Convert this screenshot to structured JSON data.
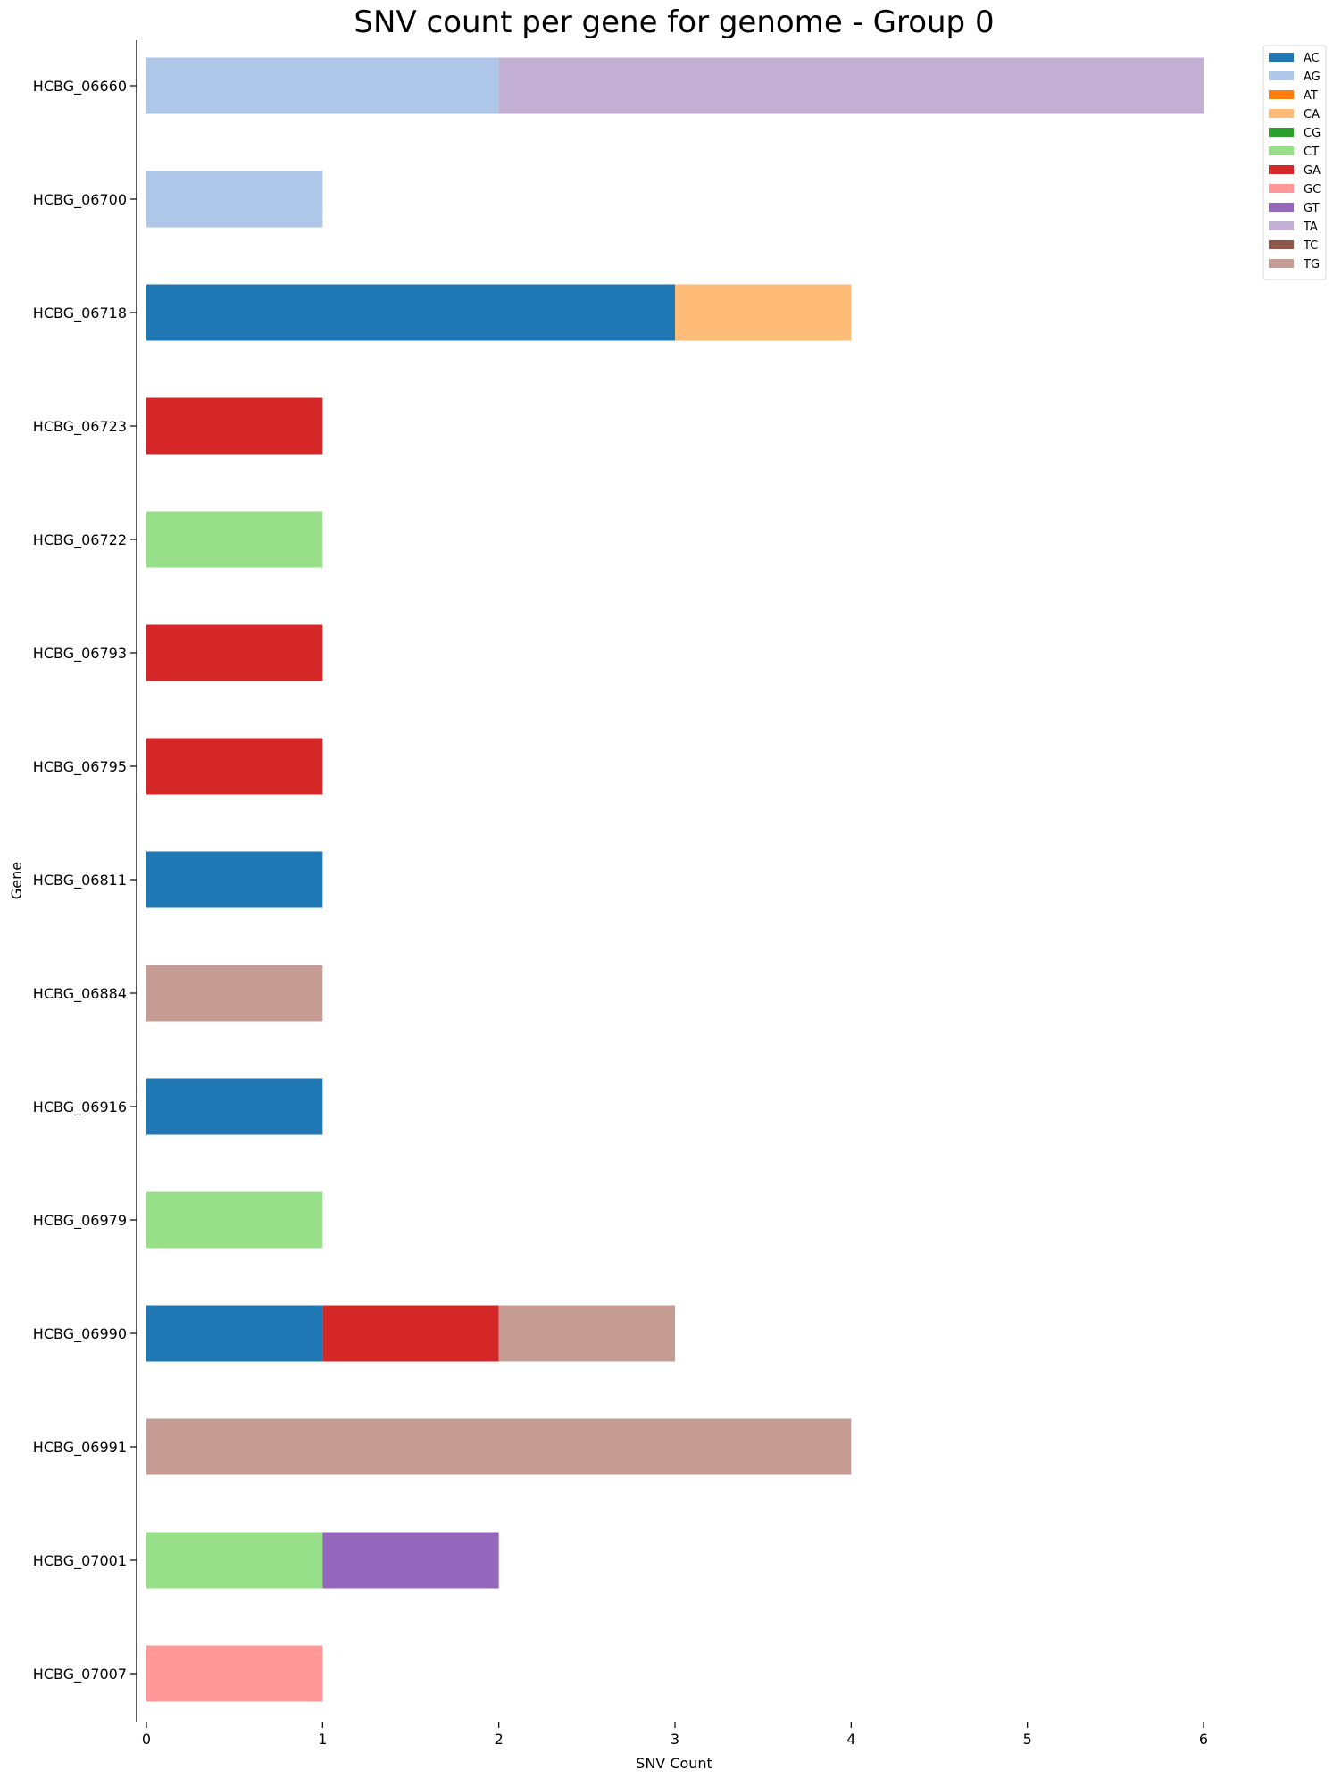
{
  "chart_data": {
    "type": "bar",
    "orientation": "horizontal",
    "stacked": true,
    "title": "SNV count per gene for genome - Group 0",
    "xlabel": "SNV Count",
    "ylabel": "Gene",
    "xlim": [
      0,
      6
    ],
    "xticks": [
      0,
      1,
      2,
      3,
      4,
      5,
      6
    ],
    "grid": false,
    "legend_position": "top-right",
    "categories": [
      "HCBG_06660",
      "HCBG_06700",
      "HCBG_06718",
      "HCBG_06723",
      "HCBG_06722",
      "HCBG_06793",
      "HCBG_06795",
      "HCBG_06811",
      "HCBG_06884",
      "HCBG_06916",
      "HCBG_06979",
      "HCBG_06990",
      "HCBG_06991",
      "HCBG_07001",
      "HCBG_07007"
    ],
    "series": [
      {
        "name": "AC",
        "color": "#1f77b4",
        "values": [
          0,
          0,
          3,
          0,
          0,
          0,
          0,
          1,
          0,
          1,
          0,
          1,
          0,
          0,
          0
        ]
      },
      {
        "name": "AG",
        "color": "#aec7e8",
        "values": [
          2,
          1,
          0,
          0,
          0,
          0,
          0,
          0,
          0,
          0,
          0,
          0,
          0,
          0,
          0
        ]
      },
      {
        "name": "AT",
        "color": "#ff7f0e",
        "values": [
          0,
          0,
          0,
          0,
          0,
          0,
          0,
          0,
          0,
          0,
          0,
          0,
          0,
          0,
          0
        ]
      },
      {
        "name": "CA",
        "color": "#ffbb78",
        "values": [
          0,
          0,
          1,
          0,
          0,
          0,
          0,
          0,
          0,
          0,
          0,
          0,
          0,
          0,
          0
        ]
      },
      {
        "name": "CG",
        "color": "#2ca02c",
        "values": [
          0,
          0,
          0,
          0,
          0,
          0,
          0,
          0,
          0,
          0,
          0,
          0,
          0,
          0,
          0
        ]
      },
      {
        "name": "CT",
        "color": "#98df8a",
        "values": [
          0,
          0,
          0,
          0,
          1,
          0,
          0,
          0,
          0,
          0,
          1,
          0,
          0,
          1,
          0
        ]
      },
      {
        "name": "GA",
        "color": "#d62728",
        "values": [
          0,
          0,
          0,
          1,
          0,
          1,
          1,
          0,
          0,
          0,
          0,
          1,
          0,
          0,
          0
        ]
      },
      {
        "name": "GC",
        "color": "#ff9896",
        "values": [
          0,
          0,
          0,
          0,
          0,
          0,
          0,
          0,
          0,
          0,
          0,
          0,
          0,
          0,
          1
        ]
      },
      {
        "name": "GT",
        "color": "#9467bd",
        "values": [
          0,
          0,
          0,
          0,
          0,
          0,
          0,
          0,
          0,
          0,
          0,
          0,
          0,
          1,
          0
        ]
      },
      {
        "name": "TA",
        "color": "#c5b0d5",
        "values": [
          4,
          0,
          0,
          0,
          0,
          0,
          0,
          0,
          0,
          0,
          0,
          0,
          0,
          0,
          0
        ]
      },
      {
        "name": "TC",
        "color": "#8c564b",
        "values": [
          0,
          0,
          0,
          0,
          0,
          0,
          0,
          0,
          0,
          0,
          0,
          0,
          0,
          0,
          0
        ]
      },
      {
        "name": "TG",
        "color": "#c49c94",
        "values": [
          0,
          0,
          0,
          0,
          0,
          0,
          0,
          0,
          1,
          0,
          0,
          1,
          4,
          0,
          0
        ]
      }
    ]
  }
}
